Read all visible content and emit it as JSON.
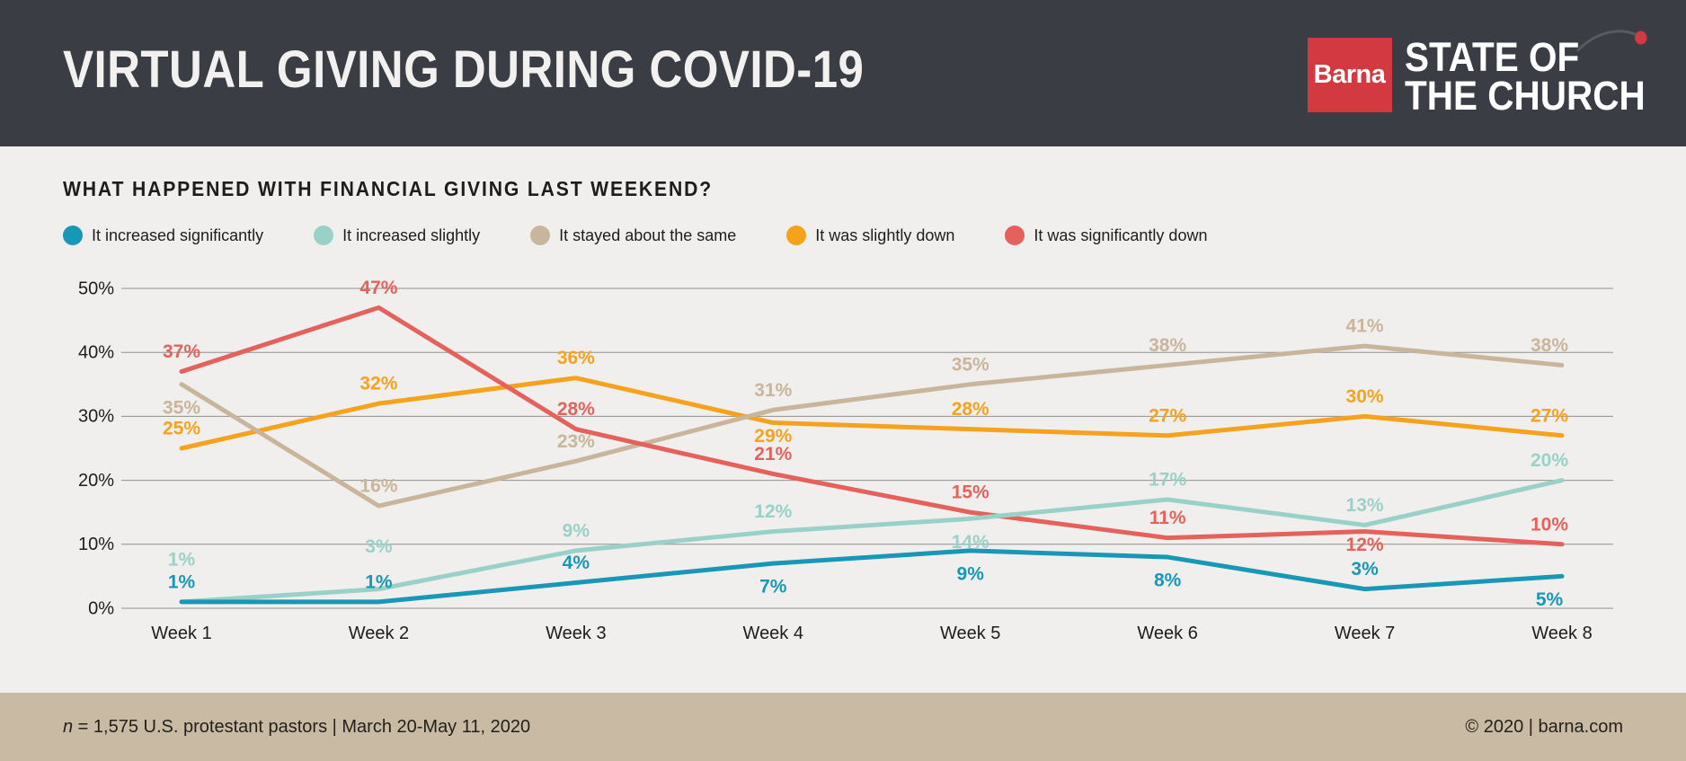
{
  "header": {
    "title": "VIRTUAL GIVING DURING COVID-19",
    "logo": {
      "brand": "Barna",
      "line1": "STATE OF",
      "line2": "THE CHURCH"
    }
  },
  "chart_data": {
    "type": "line",
    "title": "WHAT HAPPENED WITH FINANCIAL GIVING LAST WEEKEND?",
    "categories": [
      "Week 1",
      "Week 2",
      "Week 3",
      "Week 4",
      "Week 5",
      "Week 6",
      "Week 7",
      "Week 8"
    ],
    "yticks": [
      "0%",
      "10%",
      "20%",
      "30%",
      "40%",
      "50%"
    ],
    "ylim": [
      0,
      50
    ],
    "grid": true,
    "legend_position": "top",
    "value_suffix": "%",
    "series": [
      {
        "name": "It increased significantly",
        "color": "#1898B6",
        "values": [
          1,
          1,
          4,
          7,
          9,
          8,
          3,
          5
        ],
        "label_side": [
          "above",
          "above",
          "above",
          "below",
          "below",
          "below",
          "above",
          "below"
        ]
      },
      {
        "name": "It increased slightly",
        "color": "#99D1C9",
        "values": [
          1,
          3,
          9,
          12,
          14,
          17,
          13,
          20
        ],
        "label_side": [
          "above2",
          "above2",
          "above",
          "above",
          "below",
          "above",
          "above",
          "above"
        ]
      },
      {
        "name": "It stayed about the same",
        "color": "#C9B59C",
        "values": [
          35,
          16,
          23,
          31,
          35,
          38,
          41,
          38
        ],
        "label_side": [
          "below",
          "above",
          "above",
          "above",
          "above",
          "above",
          "above",
          "above"
        ]
      },
      {
        "name": "It was slightly down",
        "color": "#F5A21D",
        "values": [
          25,
          32,
          36,
          29,
          28,
          27,
          30,
          27
        ],
        "label_side": [
          "above",
          "above",
          "above",
          "below_near",
          "above",
          "above",
          "above",
          "above"
        ]
      },
      {
        "name": "It was significantly down",
        "color": "#E4615C",
        "values": [
          37,
          47,
          28,
          21,
          15,
          11,
          12,
          10
        ],
        "label_side": [
          "above",
          "above",
          "above",
          "above",
          "above",
          "above",
          "below_near",
          "above"
        ]
      }
    ]
  },
  "footer": {
    "n_symbol": "n",
    "left_text": " = 1,575 U.S. protestant pastors | March 20-May 11, 2020",
    "right_text": "© 2020 | barna.com"
  },
  "palette": {
    "header_bg": "#3B3D44",
    "page_bg": "#F1EFED",
    "footer_bg": "#C9BAA4",
    "title_text": "#F2F1EF",
    "text": "#1D1D1B",
    "grid": "#909090",
    "barna_red": "#D23940"
  }
}
